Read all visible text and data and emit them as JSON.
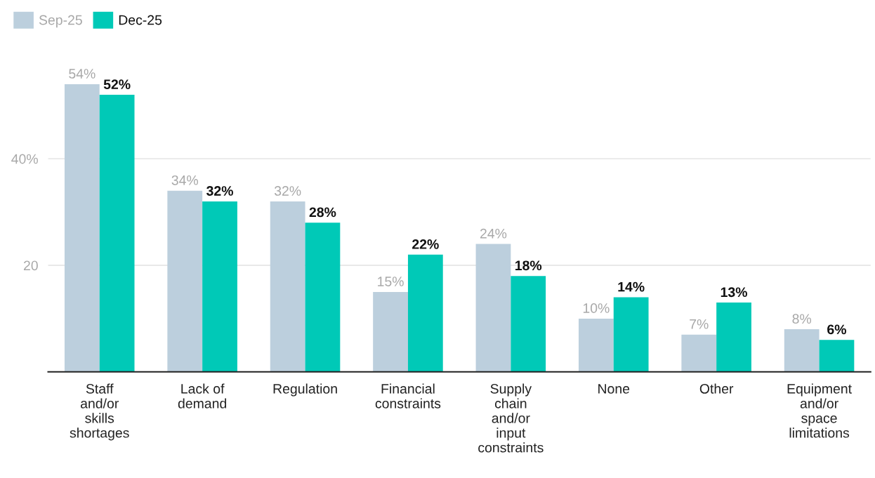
{
  "chart_data": {
    "type": "bar",
    "categories": [
      "Staff and/or skills shortages",
      "Lack of demand",
      "Regulation",
      "Financial constraints",
      "Supply chain and/or input constraints",
      "None",
      "Other",
      "Equipment and/or space limitations"
    ],
    "series": [
      {
        "name": "Sep-25",
        "color": "#bccfdd",
        "values": [
          54,
          34,
          32,
          15,
          24,
          10,
          7,
          8
        ],
        "value_labels": [
          "54%",
          "34%",
          "32%",
          "15%",
          "24%",
          "10%",
          "7%",
          "8%"
        ]
      },
      {
        "name": "Dec-25",
        "color": "#00c9b7",
        "values": [
          52,
          32,
          28,
          22,
          18,
          14,
          13,
          6
        ],
        "value_labels": [
          "52%",
          "32%",
          "28%",
          "22%",
          "18%",
          "14%",
          "13%",
          "6%"
        ]
      }
    ],
    "ylim": [
      0,
      54
    ],
    "yticks": [
      20,
      {
        "value": 40,
        "label": "40%"
      }
    ],
    "grid": "y",
    "legend": "top left"
  }
}
